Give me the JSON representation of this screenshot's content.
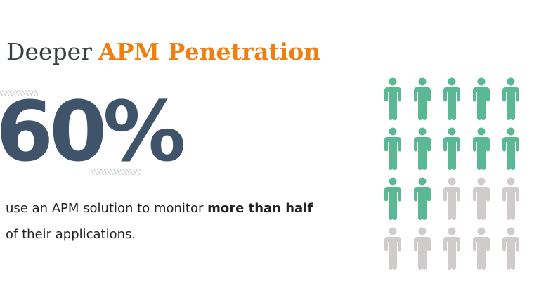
{
  "title": {
    "lead": "Deeper",
    "accent": "APM Penetration"
  },
  "stat": {
    "value": "60%",
    "description_plain": "use an APM solution to monitor",
    "description_bold": "more than half",
    "description_line2": "of their applications."
  },
  "pictogram": {
    "rows": 4,
    "columns": 5,
    "total": 20,
    "highlighted": 12,
    "icon": "person-icon",
    "colors": {
      "highlighted": "#5bb894",
      "muted": "#cfcccb"
    }
  },
  "colors": {
    "accent": "#f07f13",
    "stat": "#3f536b",
    "text": "#222222"
  }
}
